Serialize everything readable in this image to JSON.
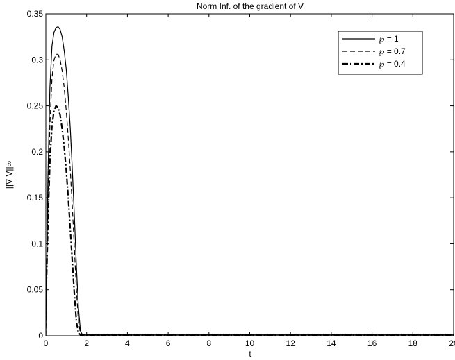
{
  "chart_data": {
    "type": "line",
    "title": "Norm Inf. of the gradient of V",
    "xlabel": "t",
    "ylabel": "||∇ V||∞",
    "xlim": [
      0,
      20
    ],
    "ylim": [
      0,
      0.35
    ],
    "xticks": [
      0,
      2,
      4,
      6,
      8,
      10,
      12,
      14,
      16,
      18,
      20
    ],
    "yticks": [
      0,
      0.05,
      0.1,
      0.15,
      0.2,
      0.25,
      0.3,
      0.35
    ],
    "xtick_labels": [
      "0",
      "2",
      "4",
      "6",
      "8",
      "10",
      "12",
      "14",
      "16",
      "18",
      "20"
    ],
    "ytick_labels": [
      "0",
      "0.05",
      "0.1",
      "0.15",
      "0.2",
      "0.25",
      "0.3",
      "0.35"
    ],
    "grid": false,
    "legend_position": "top-right",
    "series": [
      {
        "name": "℘ = 1",
        "style": "solid",
        "x": [
          0,
          0.1,
          0.2,
          0.3,
          0.4,
          0.5,
          0.6,
          0.7,
          0.8,
          0.9,
          1.0,
          1.1,
          1.2,
          1.3,
          1.4,
          1.5,
          1.6,
          1.7,
          1.8,
          1.9,
          2.0,
          20
        ],
        "values": [
          0,
          0.17,
          0.27,
          0.315,
          0.33,
          0.335,
          0.336,
          0.333,
          0.325,
          0.31,
          0.29,
          0.26,
          0.225,
          0.18,
          0.13,
          0.075,
          0.03,
          0.005,
          0.001,
          0.001,
          0.001,
          0.001
        ]
      },
      {
        "name": "℘ = 0.7",
        "style": "dashed",
        "x": [
          0,
          0.1,
          0.2,
          0.3,
          0.4,
          0.5,
          0.6,
          0.7,
          0.8,
          0.9,
          1.0,
          1.1,
          1.2,
          1.3,
          1.4,
          1.5,
          1.6,
          1.7,
          1.8,
          1.9,
          2.0,
          20
        ],
        "values": [
          0,
          0.14,
          0.23,
          0.28,
          0.3,
          0.306,
          0.306,
          0.3,
          0.288,
          0.27,
          0.245,
          0.215,
          0.18,
          0.14,
          0.095,
          0.05,
          0.015,
          0.002,
          0.001,
          0.001,
          0.001,
          0.001
        ]
      },
      {
        "name": "℘ = 0.4",
        "style": "dash-dot",
        "x": [
          0,
          0.1,
          0.2,
          0.3,
          0.4,
          0.5,
          0.6,
          0.7,
          0.8,
          0.9,
          1.0,
          1.1,
          1.2,
          1.3,
          1.4,
          1.5,
          1.6,
          1.7,
          1.8,
          1.9,
          2.0,
          20
        ],
        "values": [
          0.03,
          0.12,
          0.19,
          0.228,
          0.245,
          0.25,
          0.248,
          0.24,
          0.225,
          0.205,
          0.18,
          0.15,
          0.115,
          0.08,
          0.045,
          0.015,
          0.003,
          0.001,
          0.001,
          0.001,
          0.001,
          0.001
        ]
      }
    ]
  }
}
